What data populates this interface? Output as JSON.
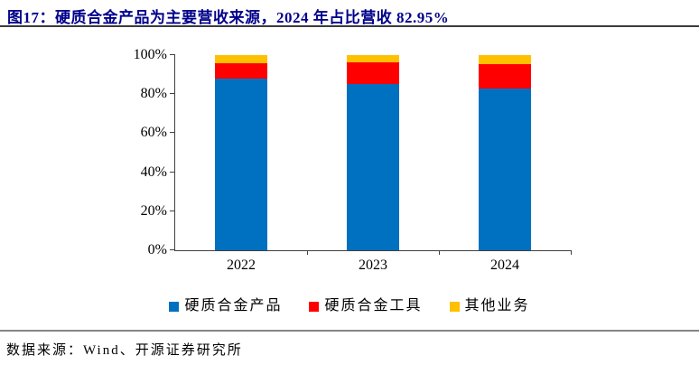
{
  "title": "图17：硬质合金产品为主要营收来源，2024 年占比营收 82.95%",
  "footer": {
    "source_label": "数据来源：Wind、开源证券研究所"
  },
  "colors": {
    "title_text": "#00008B",
    "title_rule": "#3B3B3B",
    "footer_rule": "#858585",
    "axis": "#404040",
    "series_blue": "#0070C0",
    "series_red": "#FF0000",
    "series_yellow": "#FFC000"
  },
  "chart_data": {
    "type": "bar",
    "stacked": true,
    "title": "图17：硬质合金产品为主要营收来源，2024 年占比营收 82.95%",
    "categories": [
      "2022",
      "2023",
      "2024"
    ],
    "series": [
      {
        "name": "硬质合金产品",
        "color": "#0070C0",
        "values": [
          88.0,
          85.4,
          82.95
        ]
      },
      {
        "name": "硬质合金工具",
        "color": "#FF0000",
        "values": [
          7.7,
          10.8,
          12.4
        ]
      },
      {
        "name": "其他业务",
        "color": "#FFC000",
        "values": [
          4.3,
          3.8,
          4.65
        ]
      }
    ],
    "xlabel": "",
    "ylabel": "",
    "ylim": [
      0,
      100
    ],
    "y_ticks": [
      "0%",
      "20%",
      "40%",
      "60%",
      "80%",
      "100%"
    ],
    "grid": false,
    "legend_position": "bottom"
  }
}
